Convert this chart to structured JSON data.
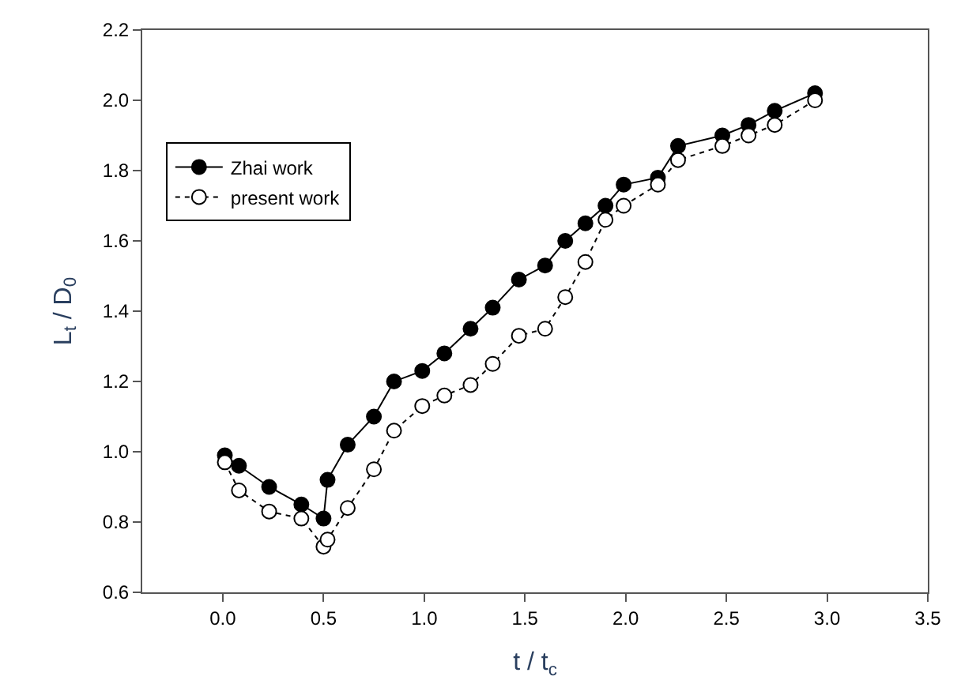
{
  "chart_data": {
    "type": "line",
    "xlabel": "t / t$_{c}$",
    "ylabel": "L$_{t}$ / D$_{0}$",
    "xlim": [
      -0.4,
      3.5
    ],
    "xticks": [
      {
        "value": 0,
        "label": "0.0"
      },
      {
        "value": 0.5,
        "label": "0.5"
      },
      {
        "value": 1,
        "label": "1.0"
      },
      {
        "value": 1.5,
        "label": "1.5"
      },
      {
        "value": 2,
        "label": "2.0"
      },
      {
        "value": 2.5,
        "label": "2.5"
      },
      {
        "value": 3,
        "label": "3.0"
      },
      {
        "value": 3.5,
        "label": "3.5"
      }
    ],
    "ylim": [
      0.6,
      2.2
    ],
    "yticks": [
      0.6,
      0.8,
      {
        "value": 1,
        "label": "1.0"
      },
      1.2,
      1.4,
      1.6,
      1.8,
      {
        "value": 2,
        "label": "2.0"
      },
      2.2
    ],
    "x": [
      0.01,
      0.08,
      0.23,
      0.39,
      0.5,
      0.52,
      0.62,
      0.75,
      0.85,
      0.99,
      1.1,
      1.23,
      1.34,
      1.47,
      1.6,
      1.7,
      1.8,
      1.9,
      1.99,
      2.16,
      2.26,
      2.48,
      2.61,
      2.74,
      2.94
    ],
    "series": [
      {
        "name": "Zhai work",
        "color": "#000000",
        "line_style": "solid",
        "values": [
          0.99,
          0.96,
          0.9,
          0.85,
          0.81,
          0.92,
          1.02,
          1.1,
          1.2,
          1.23,
          1.28,
          1.35,
          1.41,
          1.49,
          1.53,
          1.6,
          1.65,
          1.7,
          1.76,
          1.78,
          1.87,
          1.9,
          1.93,
          1.97,
          2.02
        ]
      },
      {
        "name": "present work",
        "color": "#000000",
        "line_style": "dotted",
        "values": [
          0.97,
          0.89,
          0.83,
          0.81,
          0.73,
          0.75,
          0.84,
          0.95,
          1.06,
          1.13,
          1.16,
          1.19,
          1.25,
          1.33,
          1.35,
          1.44,
          1.54,
          1.66,
          1.7,
          1.76,
          1.83,
          1.87,
          1.9,
          1.93,
          2.0
        ]
      }
    ],
    "marker": "circle",
    "legend": "top left"
  }
}
